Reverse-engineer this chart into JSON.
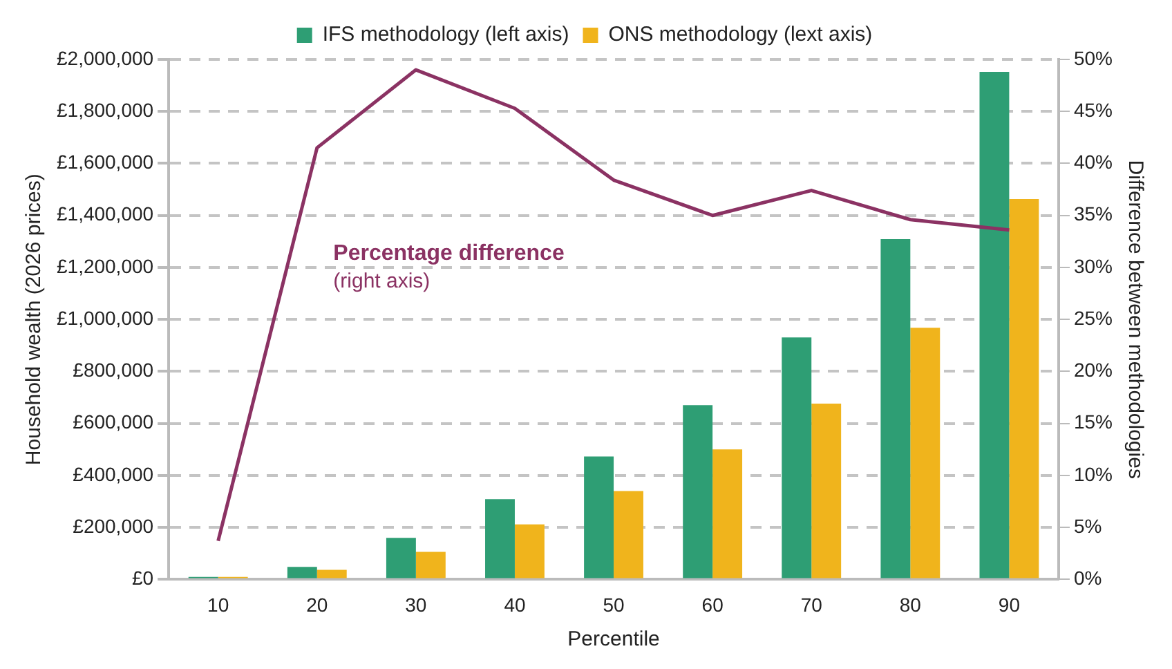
{
  "chart_data": {
    "type": "bar",
    "xlabel": "Percentile",
    "ylabel": "Household wealth (2026 prices)",
    "y2label": "Difference between methodologies",
    "categories": [
      "10",
      "20",
      "30",
      "40",
      "50",
      "60",
      "70",
      "80",
      "90"
    ],
    "series": [
      {
        "name": "IFS methodology (left axis)",
        "color": "#2e9e74",
        "values": [
          10000,
          48000,
          160000,
          309000,
          473000,
          670000,
          931000,
          1309000,
          1952000
        ]
      },
      {
        "name": "ONS methodology (lext axis)",
        "color": "#f0b41c",
        "values": [
          10000,
          37000,
          106000,
          212000,
          340000,
          500000,
          676000,
          968000,
          1463000
        ]
      },
      {
        "name": "Percentage difference",
        "type": "line",
        "axis": "y2",
        "color": "#8b3263",
        "marker": "none",
        "values": [
          3.7,
          41.5,
          49,
          45.3,
          38.4,
          35,
          37.4,
          34.6,
          33.6
        ]
      }
    ],
    "annotations": [
      "(right axis)"
    ],
    "ylim": [
      0,
      2000000
    ],
    "yticks": [
      {
        "value": 0,
        "label": "£0"
      },
      {
        "value": 200000,
        "label": "£200,000"
      },
      {
        "value": 400000,
        "label": "£400,000"
      },
      {
        "value": 600000,
        "label": "£600,000"
      },
      {
        "value": 800000,
        "label": "£800,000"
      },
      {
        "value": 1000000,
        "label": "£1,000,000"
      },
      {
        "value": 1200000,
        "label": "£1,200,000"
      },
      {
        "value": 1400000,
        "label": "£1,400,000"
      },
      {
        "value": 1600000,
        "label": "£1,600,000"
      },
      {
        "value": 1800000,
        "label": "£1,800,000"
      },
      {
        "value": 2000000,
        "label": "£2,000,000"
      }
    ],
    "y2lim": [
      0,
      50
    ],
    "y2ticks": [
      {
        "value": 0,
        "label": "0%"
      },
      {
        "value": 5,
        "label": "5%"
      },
      {
        "value": 10,
        "label": "10%"
      },
      {
        "value": 15,
        "label": "15%"
      },
      {
        "value": 20,
        "label": "20%"
      },
      {
        "value": 25,
        "label": "25%"
      },
      {
        "value": 30,
        "label": "30%"
      },
      {
        "value": 35,
        "label": "35%"
      },
      {
        "value": 40,
        "label": "40%"
      },
      {
        "value": 45,
        "label": "45%"
      },
      {
        "value": 50,
        "label": "50%"
      }
    ],
    "grid": "y",
    "legend": "top"
  }
}
